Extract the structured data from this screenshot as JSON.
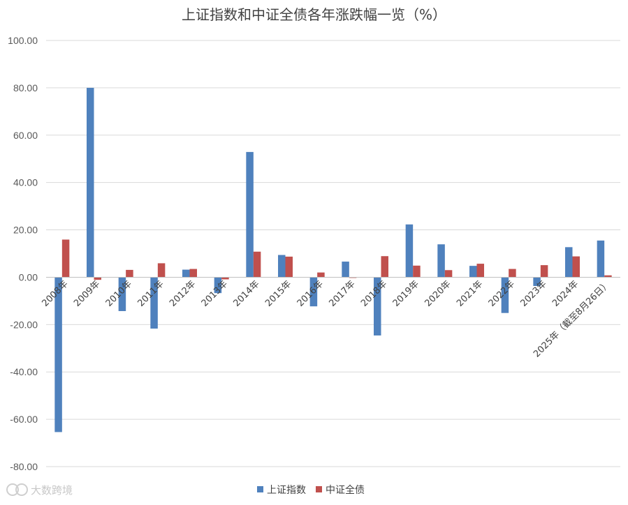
{
  "chart_data": {
    "type": "bar",
    "title": "上证指数和中证全债各年涨跌幅一览（%）",
    "xlabel": "",
    "ylabel": "",
    "ylim": [
      -80,
      100
    ],
    "yticks": [
      "100.00",
      "80.00",
      "60.00",
      "40.00",
      "20.00",
      "0.00",
      "-20.00",
      "-40.00",
      "-60.00",
      "-80.00"
    ],
    "grid": true,
    "legend_position": "bottom",
    "categories": [
      "2008年",
      "2009年",
      "2010年",
      "2011年",
      "2012年",
      "2013年",
      "2014年",
      "2015年",
      "2016年",
      "2017年",
      "2018年",
      "2019年",
      "2020年",
      "2021年",
      "2022年",
      "2023年",
      "2024年",
      "2025年（截至8月26日）"
    ],
    "series": [
      {
        "name": "上证指数",
        "color": "#4f81bd",
        "values": [
          -65.4,
          80.0,
          -14.3,
          -21.7,
          3.2,
          -6.7,
          52.9,
          9.4,
          -12.3,
          6.6,
          -24.6,
          22.3,
          13.9,
          4.8,
          -15.1,
          -3.7,
          12.7,
          15.5
        ]
      },
      {
        "name": "中证全债",
        "color": "#c0504d",
        "values": [
          15.9,
          -1.1,
          3.1,
          5.9,
          3.5,
          -0.9,
          10.8,
          8.7,
          2.0,
          -0.3,
          8.9,
          4.9,
          3.0,
          5.7,
          3.5,
          5.1,
          8.8,
          0.8
        ]
      }
    ]
  },
  "watermark": {
    "text": "大数跨境"
  }
}
